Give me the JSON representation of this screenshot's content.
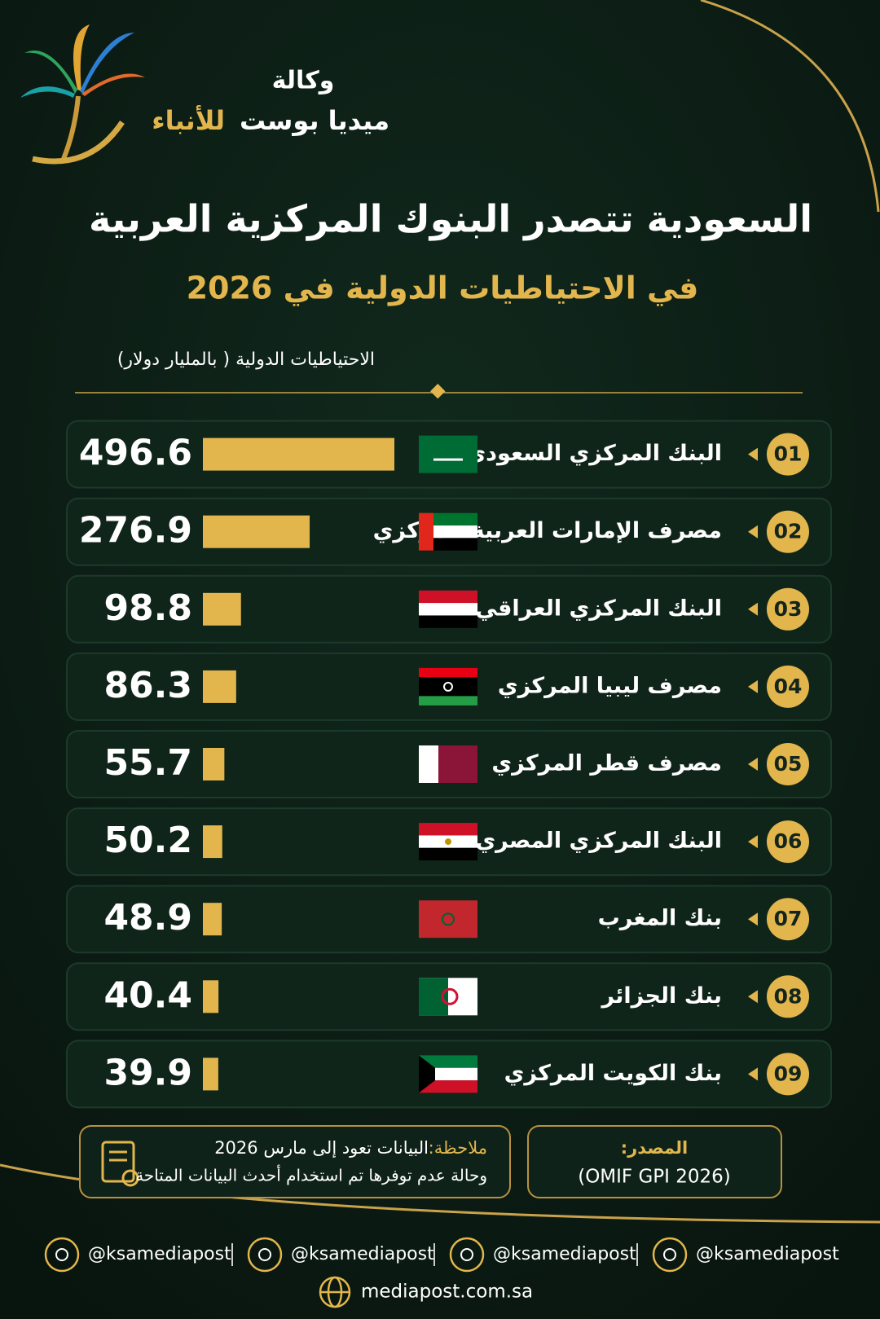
{
  "brand": {
    "line1": "وكالة",
    "line2a": "ميديا بوست",
    "line2b": "للأنباء"
  },
  "chart_data": {
    "type": "bar",
    "orientation": "horizontal",
    "title": "السعودية تتصدر البنوك المركزية العربية",
    "subtitle": "في الاحتياطيات الدولية في 2026",
    "axis_label": "الاحتياطيات الدولية ( بالمليار دولار)",
    "ranks": [
      "01",
      "02",
      "03",
      "04",
      "05",
      "06",
      "07",
      "08",
      "09"
    ],
    "categories": [
      "البنك المركزي السعودي",
      "مصرف الإمارات العربية المركزي",
      "البنك المركزي العراقي",
      "مصرف ليبيا المركزي",
      "مصرف قطر المركزي",
      "البنك المركزي المصري",
      "بنك المغرب",
      "بنك الجزائر",
      "بنك الكويت المركزي"
    ],
    "values": [
      496.6,
      276.9,
      98.8,
      86.3,
      55.7,
      50.2,
      48.9,
      40.4,
      39.9
    ],
    "color": "#e2b64c"
  },
  "note": {
    "label": "ملاحظة:",
    "lines": [
      "البيانات تعود إلى مارس 2026",
      "وحالة عدم توفرها تم استخدام أحدث البيانات المتاحة"
    ]
  },
  "source": {
    "label": "المصدر:",
    "text": "(OMIF GPI 2026)"
  },
  "footer": {
    "handles": [
      "@ksamediapost",
      "@ksamediapost",
      "@ksamediapost",
      "@ksamediapost"
    ],
    "website": "mediapost.com.sa"
  }
}
